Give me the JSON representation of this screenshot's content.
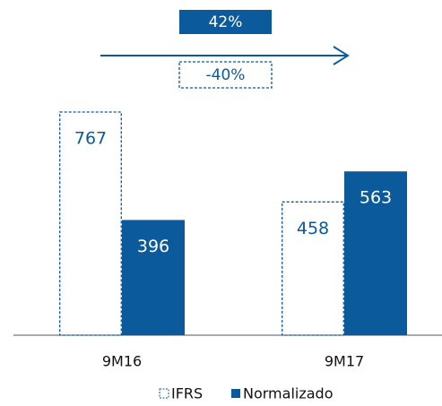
{
  "chart_data": {
    "type": "bar",
    "categories": [
      "9M16",
      "9M17"
    ],
    "series": [
      {
        "name": "IFRS",
        "color": "#0b5a9c",
        "dashed": true,
        "values": [
          767,
          458
        ]
      },
      {
        "name": "Normalizado",
        "color": "#0b5a9c",
        "dashed": false,
        "values": [
          396,
          563
        ]
      }
    ],
    "annotations": [
      "42%",
      "-40%"
    ]
  }
}
